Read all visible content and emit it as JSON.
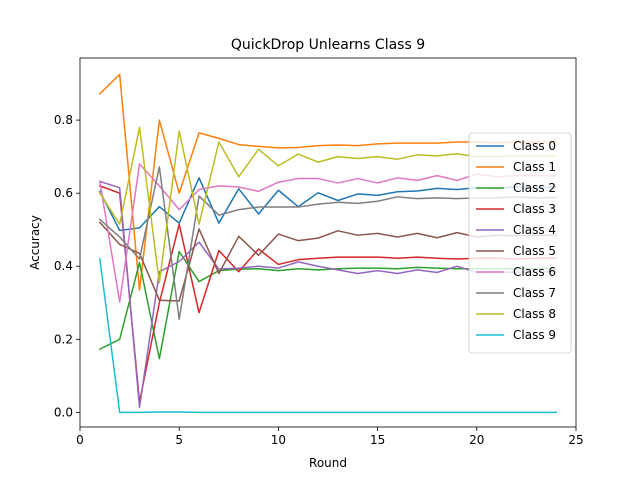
{
  "chart_data": {
    "type": "line",
    "title": "QuickDrop Unlearns Class 9",
    "xlabel": "Round",
    "ylabel": "Accuracy",
    "xlim": [
      0,
      25
    ],
    "ylim": [
      -0.04,
      0.97
    ],
    "xticks": [
      0,
      5,
      10,
      15,
      20,
      25
    ],
    "yticks": [
      0.0,
      0.2,
      0.4,
      0.6,
      0.8
    ],
    "ytick_labels": [
      "0.0",
      "0.2",
      "0.4",
      "0.6",
      "0.8"
    ],
    "grid": false,
    "legend_position": "right",
    "x": [
      1,
      2,
      3,
      4,
      5,
      6,
      7,
      8,
      9,
      10,
      11,
      12,
      13,
      14,
      15,
      16,
      17,
      18,
      19,
      20,
      21,
      22,
      23,
      24
    ],
    "series": [
      {
        "name": "Class 0",
        "color": "#1f77b4",
        "values": [
          0.605,
          0.498,
          0.505,
          0.563,
          0.518,
          0.642,
          0.518,
          0.612,
          0.543,
          0.608,
          0.563,
          0.601,
          0.58,
          0.598,
          0.594,
          0.604,
          0.606,
          0.613,
          0.61,
          0.615,
          0.612,
          0.618,
          0.615,
          0.617
        ]
      },
      {
        "name": "Class 1",
        "color": "#ff7f0e",
        "values": [
          0.872,
          0.925,
          0.335,
          0.8,
          0.6,
          0.765,
          0.75,
          0.733,
          0.728,
          0.724,
          0.725,
          0.73,
          0.732,
          0.73,
          0.735,
          0.737,
          0.737,
          0.737,
          0.74,
          0.74,
          0.738,
          0.74,
          0.74,
          0.74
        ]
      },
      {
        "name": "Class 2",
        "color": "#2ca02c",
        "values": [
          0.173,
          0.2,
          0.41,
          0.147,
          0.44,
          0.358,
          0.388,
          0.392,
          0.393,
          0.388,
          0.393,
          0.39,
          0.393,
          0.395,
          0.395,
          0.393,
          0.397,
          0.395,
          0.393,
          0.393,
          0.393,
          0.393,
          0.393,
          0.393
        ]
      },
      {
        "name": "Class 3",
        "color": "#d62728",
        "values": [
          0.62,
          0.6,
          0.028,
          0.3,
          0.515,
          0.273,
          0.443,
          0.385,
          0.447,
          0.405,
          0.418,
          0.422,
          0.425,
          0.425,
          0.425,
          0.422,
          0.425,
          0.422,
          0.42,
          0.422,
          0.422,
          0.42,
          0.422,
          0.422
        ]
      },
      {
        "name": "Class 4",
        "color": "#9467bd",
        "values": [
          0.632,
          0.615,
          0.014,
          0.385,
          0.413,
          0.466,
          0.392,
          0.395,
          0.4,
          0.395,
          0.412,
          0.4,
          0.39,
          0.38,
          0.388,
          0.38,
          0.39,
          0.383,
          0.4,
          0.383,
          0.385,
          0.383,
          0.385,
          0.385
        ]
      },
      {
        "name": "Class 5",
        "color": "#8c564b",
        "values": [
          0.52,
          0.46,
          0.435,
          0.307,
          0.305,
          0.502,
          0.38,
          0.482,
          0.43,
          0.488,
          0.47,
          0.477,
          0.497,
          0.485,
          0.49,
          0.48,
          0.49,
          0.478,
          0.492,
          0.48,
          0.485,
          0.483,
          0.485,
          0.485
        ]
      },
      {
        "name": "Class 6",
        "color": "#e377c2",
        "values": [
          0.632,
          0.302,
          0.68,
          0.62,
          0.555,
          0.61,
          0.62,
          0.617,
          0.605,
          0.63,
          0.64,
          0.64,
          0.628,
          0.64,
          0.628,
          0.642,
          0.635,
          0.648,
          0.635,
          0.652,
          0.645,
          0.648,
          0.648,
          0.648
        ]
      },
      {
        "name": "Class 7",
        "color": "#7f7f7f",
        "values": [
          0.528,
          0.48,
          0.42,
          0.672,
          0.255,
          0.592,
          0.54,
          0.555,
          0.562,
          0.562,
          0.562,
          0.57,
          0.575,
          0.572,
          0.578,
          0.59,
          0.585,
          0.587,
          0.585,
          0.587,
          0.587,
          0.59,
          0.587,
          0.588
        ]
      },
      {
        "name": "Class 8",
        "color": "#bcbd22",
        "values": [
          0.6,
          0.515,
          0.78,
          0.355,
          0.77,
          0.515,
          0.74,
          0.645,
          0.72,
          0.675,
          0.707,
          0.685,
          0.7,
          0.695,
          0.7,
          0.693,
          0.705,
          0.702,
          0.708,
          0.7,
          0.7,
          0.702,
          0.702,
          0.702
        ]
      },
      {
        "name": "Class 9",
        "color": "#17becf",
        "values": [
          0.42,
          0.0,
          0.0,
          0.001,
          0.001,
          0.0,
          0.0,
          0.0,
          0.0,
          0.0,
          0.0,
          0.0,
          0.0,
          0.0,
          0.0,
          0.0,
          0.0,
          0.0,
          0.0,
          0.0,
          0.0,
          0.0,
          0.0,
          0.0
        ]
      }
    ]
  }
}
